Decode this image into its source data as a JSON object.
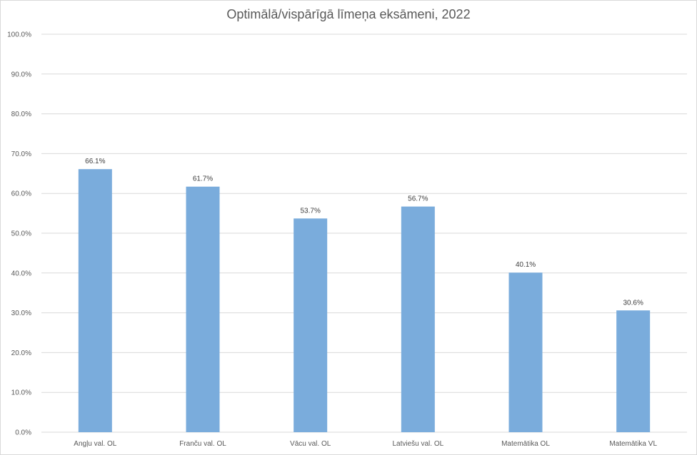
{
  "chart_data": {
    "type": "bar",
    "title": "Optimālā/vispārīgā līmeņa eksāmeni, 2022",
    "categories": [
      "Angļu val. OL",
      "Franču val. OL",
      "Vācu val. OL",
      "Latviešu val. OL",
      "Matemātika OL",
      "Matemātika VL"
    ],
    "values": [
      66.1,
      61.7,
      53.7,
      56.7,
      40.1,
      30.6
    ],
    "data_labels": [
      "66.1%",
      "61.7%",
      "53.7%",
      "56.7%",
      "40.1%",
      "30.6%"
    ],
    "y_ticks": [
      "0.0%",
      "10.0%",
      "20.0%",
      "30.0%",
      "40.0%",
      "50.0%",
      "60.0%",
      "70.0%",
      "80.0%",
      "90.0%",
      "100.0%"
    ],
    "ylim": [
      0,
      100
    ],
    "xlabel": "",
    "ylabel": "",
    "grid": true,
    "legend": "none",
    "bar_color": "#7aacdc",
    "grid_color": "#d9d9d9"
  }
}
